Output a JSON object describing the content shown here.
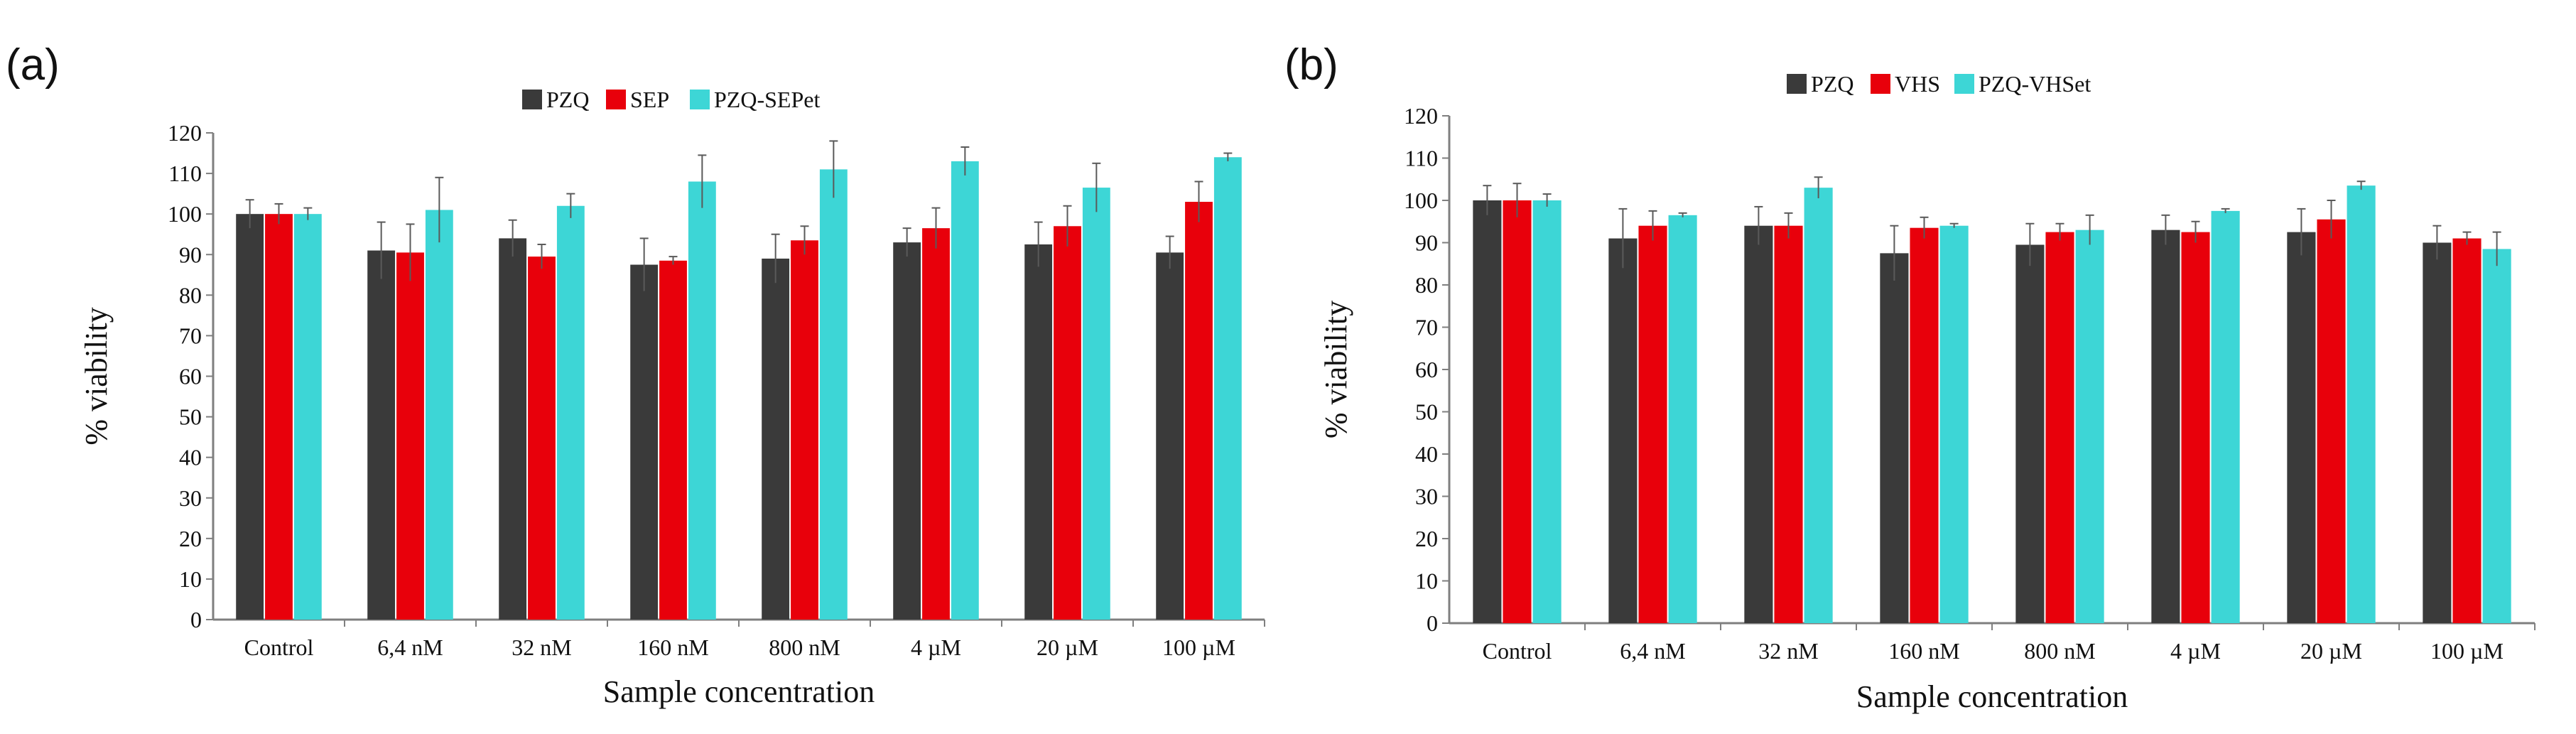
{
  "colors": {
    "PZQ": "#3a3a3a",
    "SEP": "#e8000b",
    "VHS": "#e8000b",
    "PZQ-SEPet": "#3dd6d6",
    "PZQ-VHSet": "#3dd6d6",
    "axis": "#7f7f7f",
    "errorbar": "#5a5a5a"
  },
  "chart_data": [
    {
      "panel": "(a)",
      "type": "bar",
      "categories": [
        "Control",
        "6,4 nM",
        "32 nM",
        "160 nM",
        "800 nM",
        "4 µM",
        "20 µM",
        "100 µM"
      ],
      "series": [
        {
          "name": "PZQ",
          "values": [
            100,
            91,
            94,
            87.5,
            89,
            93,
            92.5,
            90.5
          ],
          "errors": [
            3.5,
            7,
            4.5,
            6.5,
            6,
            3.5,
            5.5,
            4
          ]
        },
        {
          "name": "SEP",
          "values": [
            100,
            90.5,
            89.5,
            88.5,
            93.5,
            96.5,
            97,
            103
          ],
          "errors": [
            2.5,
            7,
            3,
            1,
            3.5,
            5,
            5,
            5
          ]
        },
        {
          "name": "PZQ-SEPet",
          "values": [
            100,
            101,
            102,
            108,
            111,
            113,
            106.5,
            114
          ],
          "errors": [
            1.5,
            8,
            3,
            6.5,
            7,
            3.5,
            6,
            1
          ]
        }
      ],
      "xlabel": "Sample concentration",
      "ylabel": "% viability",
      "ylim": [
        0,
        120
      ],
      "yticks": [
        0,
        10,
        20,
        30,
        40,
        50,
        60,
        70,
        80,
        90,
        100,
        110,
        120
      ],
      "legend": "top-center"
    },
    {
      "panel": "(b)",
      "type": "bar",
      "categories": [
        "Control",
        "6,4 nM",
        "32 nM",
        "160 nM",
        "800 nM",
        "4 µM",
        "20 µM",
        "100 µM"
      ],
      "series": [
        {
          "name": "PZQ",
          "values": [
            100,
            91,
            94,
            87.5,
            89.5,
            93,
            92.5,
            90
          ],
          "errors": [
            3.5,
            7,
            4.5,
            6.5,
            5,
            3.5,
            5.5,
            4
          ]
        },
        {
          "name": "VHS",
          "values": [
            100,
            94,
            94,
            93.5,
            92.5,
            92.5,
            95.5,
            91
          ],
          "errors": [
            4,
            3.5,
            3,
            2.5,
            2,
            2.5,
            4.5,
            1.5
          ]
        },
        {
          "name": "PZQ-VHSet",
          "values": [
            100,
            96.5,
            103,
            94,
            93,
            97.5,
            103.5,
            88.5
          ],
          "errors": [
            1.5,
            0.5,
            2.5,
            0.5,
            3.5,
            0.5,
            1,
            4
          ]
        }
      ],
      "xlabel": "Sample concentration",
      "ylabel": "% viability",
      "ylim": [
        0,
        120
      ],
      "yticks": [
        0,
        10,
        20,
        30,
        40,
        50,
        60,
        70,
        80,
        90,
        100,
        110,
        120
      ],
      "legend": "top-center"
    }
  ]
}
